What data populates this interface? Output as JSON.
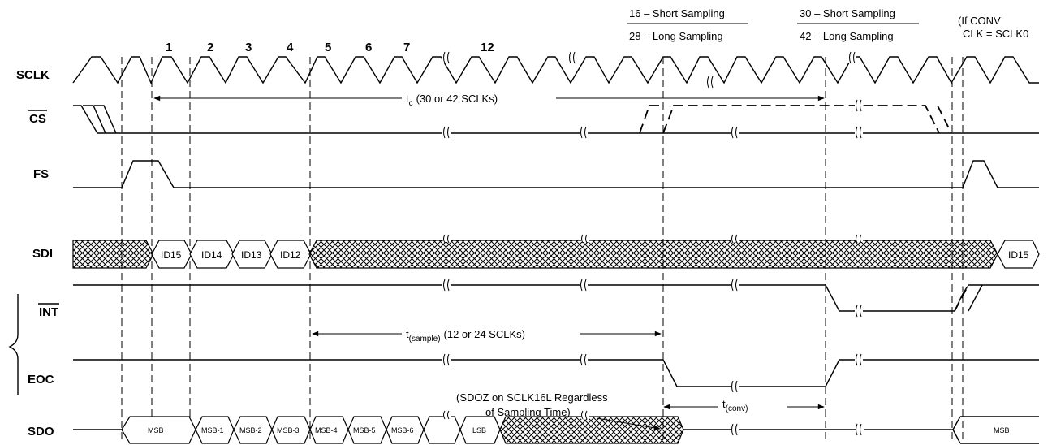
{
  "signals": {
    "sclk": "SCLK",
    "cs": "CS",
    "fs": "FS",
    "sdi": "SDI",
    "int": "INT",
    "eoc": "EOC",
    "sdo": "SDO"
  },
  "clock_numbers": [
    "1",
    "2",
    "3",
    "4",
    "5",
    "6",
    "7",
    "12"
  ],
  "top_labels": {
    "short16": "16 – Short Sampling",
    "long28": "28 – Long Sampling",
    "short30": "30 – Short Sampling",
    "long42": "42 – Long Sampling",
    "ifconv1": "(If CONV",
    "ifconv2": "CLK = SCLK0"
  },
  "timing": {
    "tc_sym": "t",
    "tc_sub": "c",
    "tc_text": "(30 or 42 SCLKs)",
    "tsample_sym": "t",
    "tsample_sub": "(sample)",
    "tsample_text": "(12 or 24 SCLKs)",
    "tconv_sym": "t",
    "tconv_sub": "(conv)"
  },
  "notes": {
    "sdoz1": "(SDOZ on SCLK16L Regardless",
    "sdoz2": "of Sampling Time)"
  },
  "sdi_words": [
    "ID15",
    "ID14",
    "ID13",
    "ID12",
    "ID15"
  ],
  "sdo_words": [
    "MSB",
    "MSB-1",
    "MSB-2",
    "MSB-3",
    "MSB-4",
    "MSB-5",
    "MSB-6",
    "LSB",
    "MSB"
  ]
}
